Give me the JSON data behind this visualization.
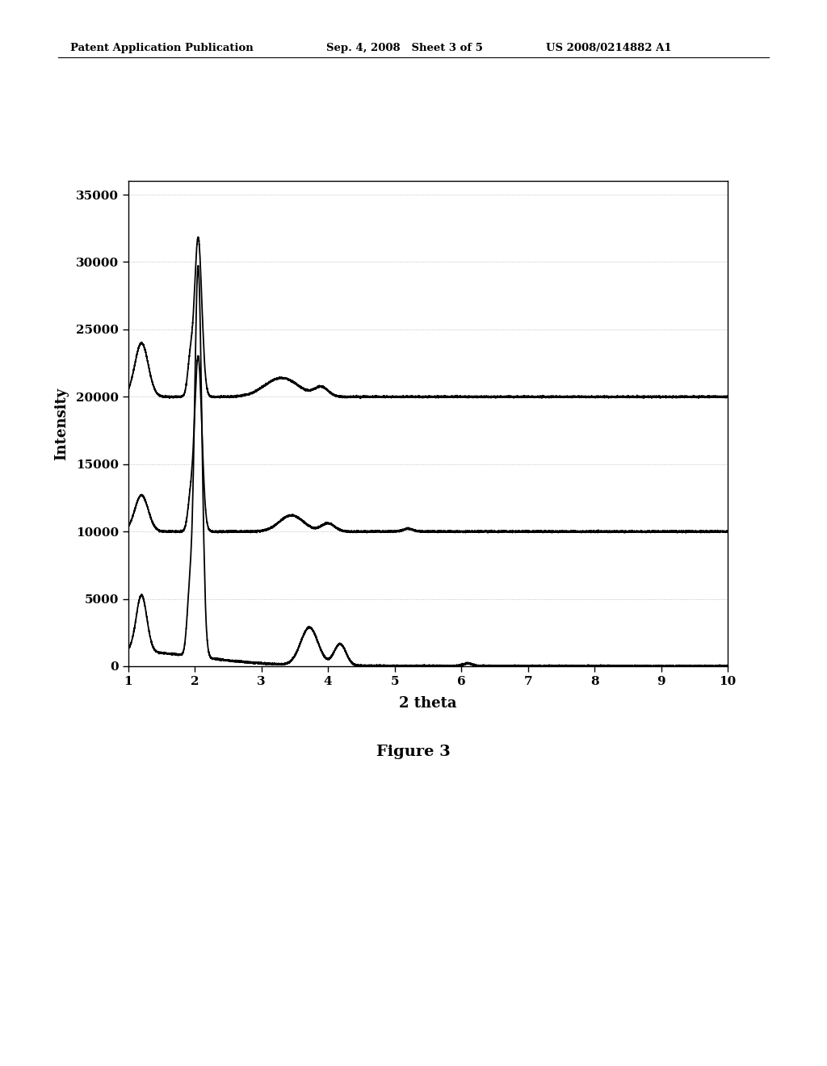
{
  "title": "Figure 3",
  "xlabel": "2 theta",
  "ylabel": "Intensity",
  "xlim": [
    1,
    10
  ],
  "ylim": [
    0,
    36000
  ],
  "yticks": [
    0,
    5000,
    10000,
    15000,
    20000,
    25000,
    30000,
    35000
  ],
  "xticks": [
    1,
    2,
    3,
    4,
    5,
    6,
    7,
    8,
    9,
    10
  ],
  "background_color": "#ffffff",
  "line_color": "#000000",
  "grid_color": "#b0b0b0",
  "header_left": "Patent Application Publication",
  "header_mid": "Sep. 4, 2008   Sheet 3 of 5",
  "header_right": "US 2008/0214882 A1",
  "figure_caption": "Figure 3"
}
